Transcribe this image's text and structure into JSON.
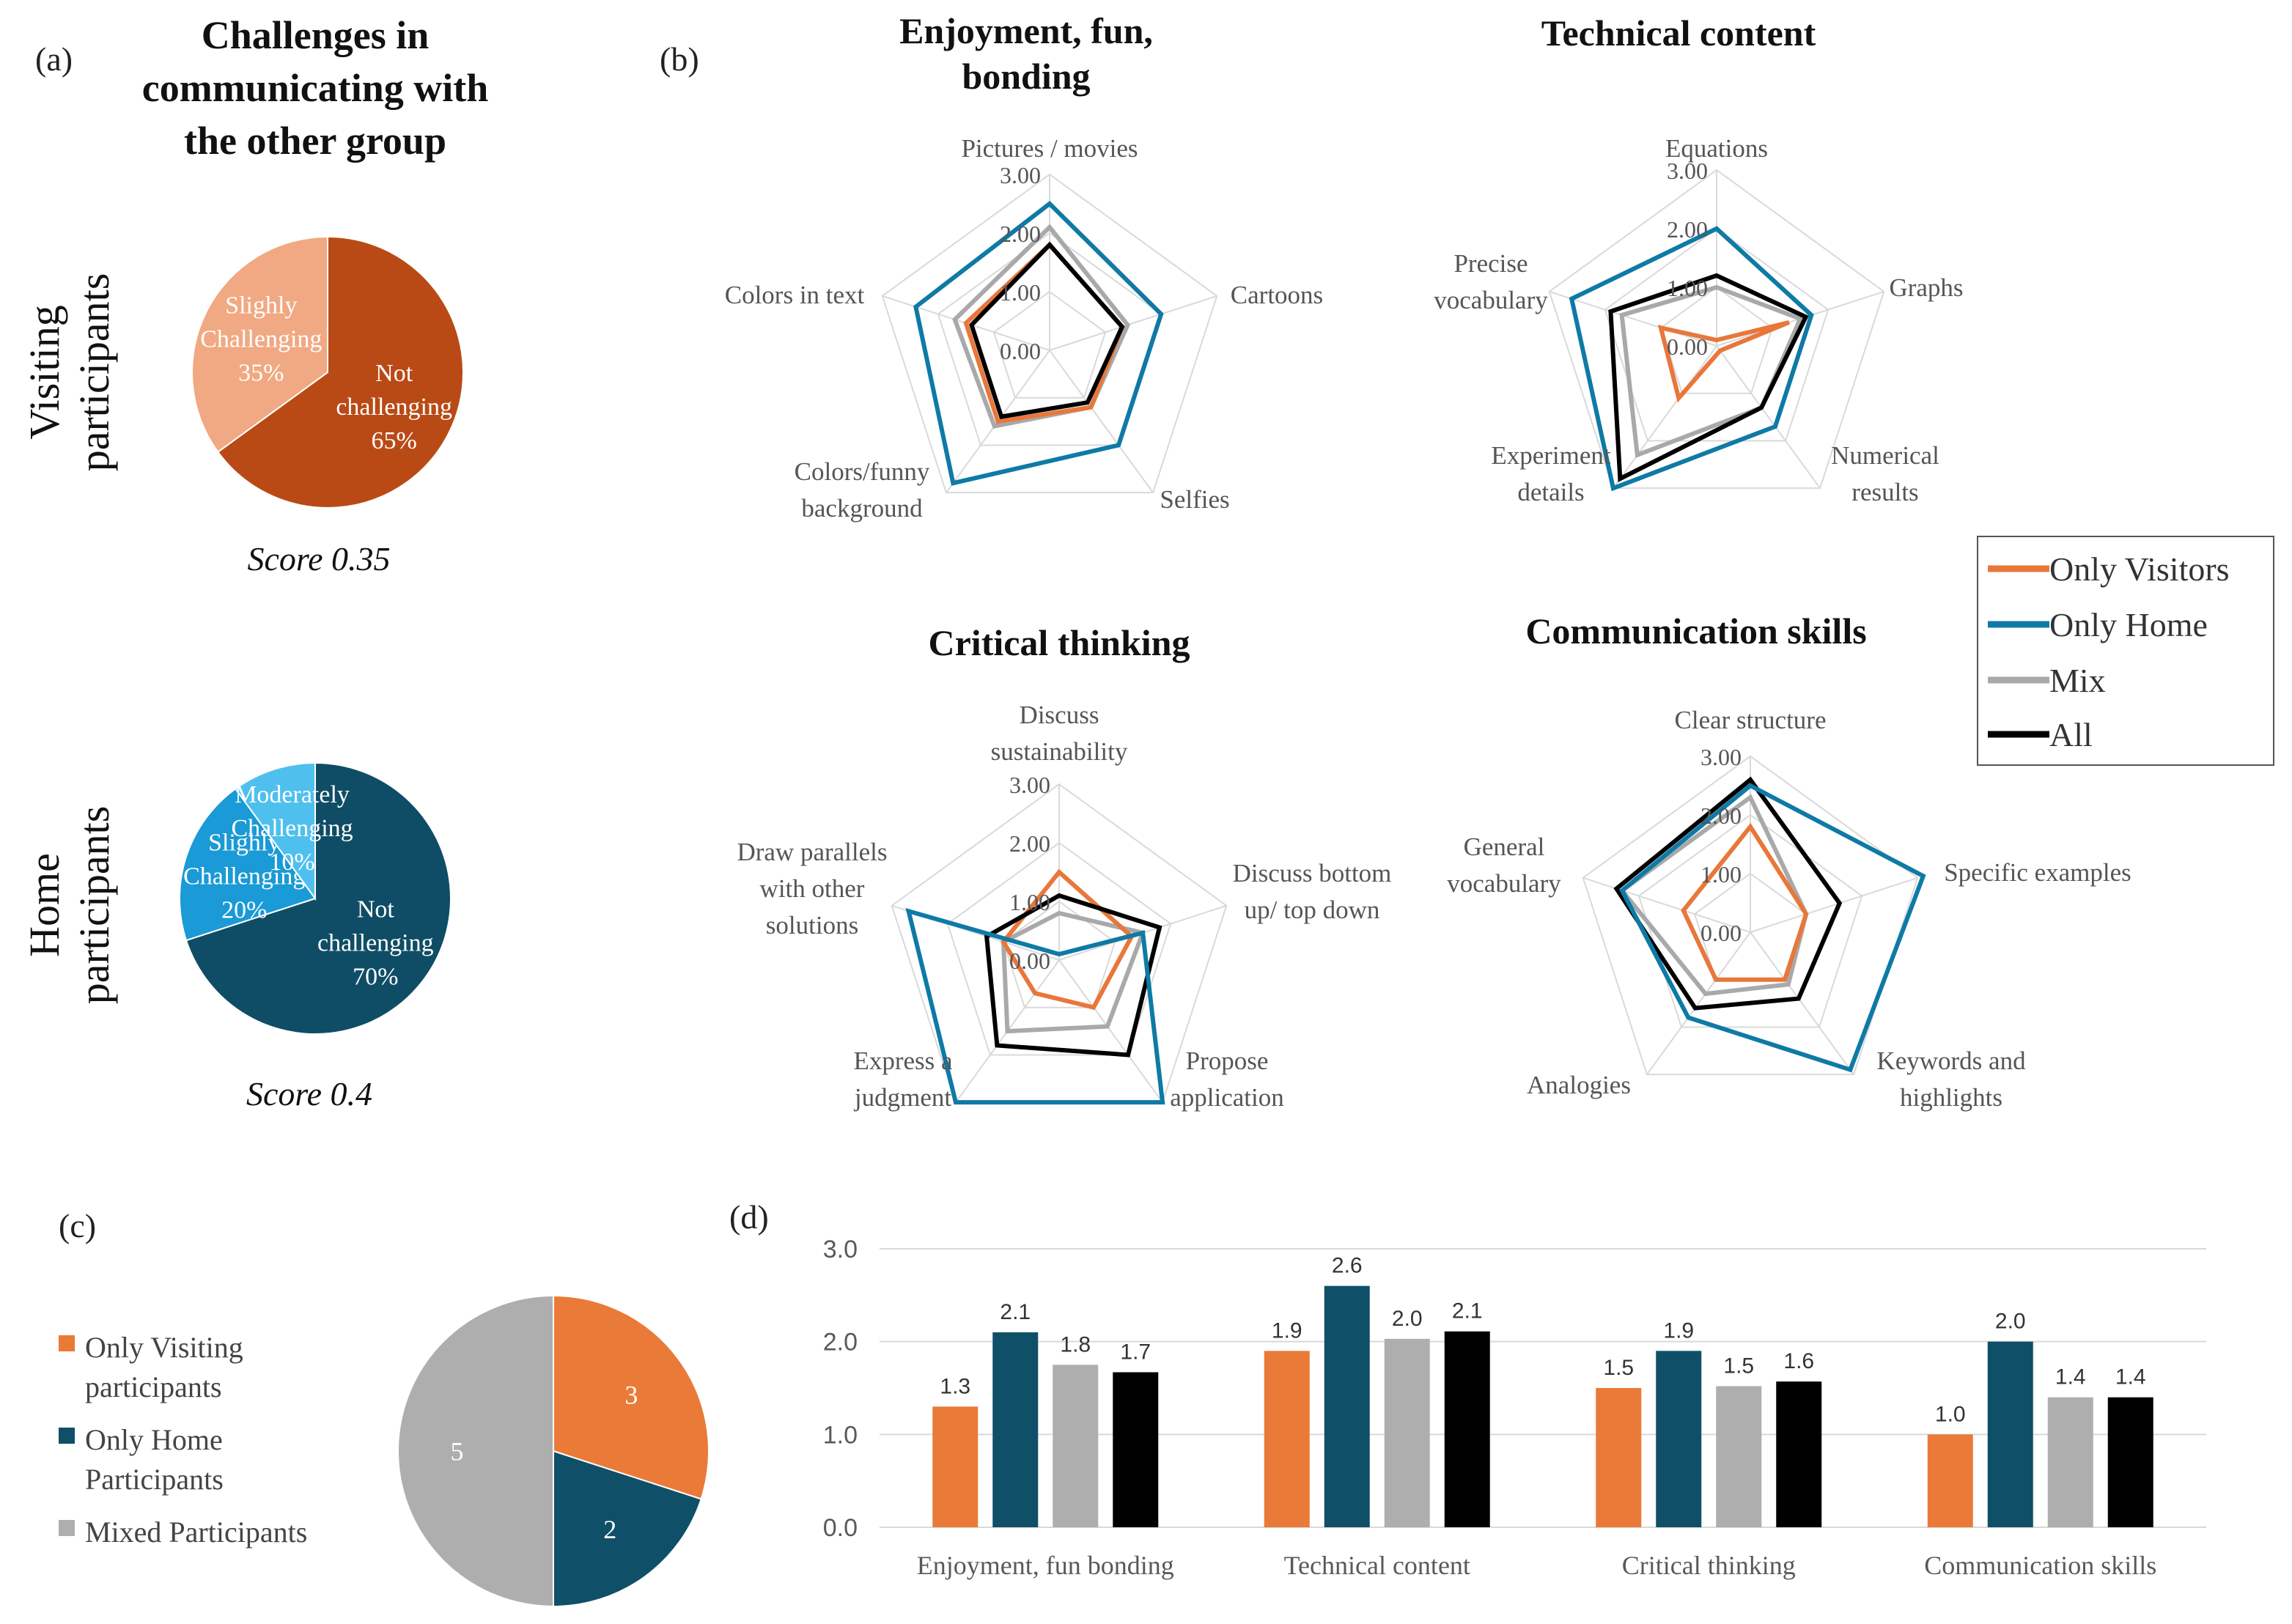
{
  "panel_labels": {
    "a": "(a)",
    "b": "(b)",
    "c": "(c)",
    "d": "(d)"
  },
  "colors": {
    "visiting_dark": "#b94a16",
    "visiting_light": "#f0a982",
    "home_dark": "#0f4d66",
    "home_mid": "#1a9ad6",
    "home_light": "#4fc0ee",
    "only_visitors": "#e8773a",
    "only_home": "#0e7aa5",
    "mix": "#a9a9a9",
    "all": "#000000",
    "bar_visitors": "#ea7a38",
    "bar_home": "#0f4f68",
    "bar_mix": "#aeaeae",
    "bar_all": "#000000",
    "grid": "#d9d9d9",
    "axis_text": "#595959"
  },
  "panel_a": {
    "title_lines": [
      "Challenges in",
      "communicating with",
      "the other group"
    ],
    "visiting_label": [
      "Visiting",
      "participants"
    ],
    "home_label": [
      "Home",
      "participants"
    ],
    "visiting_score": "Score 0.35",
    "home_score": "Score 0.4"
  },
  "legend": {
    "only_visitors": "Only Visitors",
    "only_home": "Only Home",
    "mix": "Mix",
    "all": "All"
  },
  "panel_c": {
    "legend": [
      {
        "lines": [
          "Only Visiting",
          "participants"
        ],
        "color": "#ea7a38"
      },
      {
        "lines": [
          "Only Home",
          "Participants"
        ],
        "color": "#0f4f68"
      },
      {
        "lines": [
          "Mixed Participants"
        ],
        "color": "#aeaeae"
      }
    ]
  },
  "chart_data": [
    {
      "id": "visiting_pie",
      "type": "pie",
      "title": "Visiting participants",
      "slices": [
        {
          "lines": [
            "Not",
            "challenging",
            "65%"
          ],
          "value": 65,
          "color": "#b94a16"
        },
        {
          "lines": [
            "Slighly",
            "Challenging",
            "35%"
          ],
          "value": 35,
          "color": "#f0a982"
        }
      ]
    },
    {
      "id": "home_pie",
      "type": "pie",
      "title": "Home participants",
      "slices": [
        {
          "lines": [
            "Not",
            "challenging",
            "70%"
          ],
          "value": 70,
          "color": "#0f4d66"
        },
        {
          "lines": [
            "Slighly",
            "Challenging",
            "20%"
          ],
          "value": 20,
          "color": "#1a9ad6"
        },
        {
          "lines": [
            "Moderately",
            "Challenging",
            "10%"
          ],
          "value": 10,
          "color": "#4fc0ee"
        }
      ]
    },
    {
      "id": "radar_enjoyment",
      "type": "radar",
      "title_lines": [
        "Enjoyment, fun,",
        "bonding"
      ],
      "axes": [
        {
          "lines": [
            "Pictures / movies"
          ]
        },
        {
          "lines": [
            "Cartoons"
          ]
        },
        {
          "lines": [
            "Selfies"
          ]
        },
        {
          "lines": [
            "Colors/funny",
            "background"
          ]
        },
        {
          "lines": [
            "Colors in text"
          ]
        }
      ],
      "rmax": 3,
      "ticks": [
        "0.00",
        "1.00",
        "2.00",
        "3.00"
      ],
      "series": [
        {
          "name": "Only Visitors",
          "values": [
            1.8,
            1.3,
            1.2,
            1.5,
            1.5
          ]
        },
        {
          "name": "Only Home",
          "values": [
            2.5,
            2.0,
            2.0,
            2.8,
            2.4
          ]
        },
        {
          "name": "Mix",
          "values": [
            2.1,
            1.4,
            1.2,
            1.6,
            1.7
          ]
        },
        {
          "name": "All",
          "values": [
            1.8,
            1.3,
            1.1,
            1.4,
            1.4
          ]
        }
      ]
    },
    {
      "id": "radar_technical",
      "type": "radar",
      "title_lines": [
        "Technical content"
      ],
      "axes": [
        {
          "lines": [
            "Equations"
          ]
        },
        {
          "lines": [
            "Graphs"
          ]
        },
        {
          "lines": [
            "Numerical",
            "results"
          ]
        },
        {
          "lines": [
            "Experiment",
            "details"
          ]
        },
        {
          "lines": [
            "Precise",
            "vocabulary"
          ]
        }
      ],
      "rmax": 3,
      "ticks": [
        "0.00",
        "1.00",
        "2.00",
        "3.00"
      ],
      "series": [
        {
          "name": "Only Visitors",
          "values": [
            0.1,
            1.3,
            0.1,
            1.1,
            1.0
          ]
        },
        {
          "name": "Only Home",
          "values": [
            2.0,
            1.7,
            1.7,
            3.0,
            2.6
          ]
        },
        {
          "name": "Mix",
          "values": [
            1.0,
            1.5,
            1.3,
            2.3,
            1.7
          ]
        },
        {
          "name": "All",
          "values": [
            1.2,
            1.6,
            1.3,
            2.8,
            1.9
          ]
        }
      ]
    },
    {
      "id": "radar_critical",
      "type": "radar",
      "title_lines": [
        "Critical thinking"
      ],
      "axes": [
        {
          "lines": [
            "Discuss",
            "sustainability"
          ]
        },
        {
          "lines": [
            "Discuss bottom",
            "up/ top down"
          ]
        },
        {
          "lines": [
            "Propose",
            "application"
          ]
        },
        {
          "lines": [
            "Express a",
            "judgment"
          ]
        },
        {
          "lines": [
            "Draw parallels",
            "with other",
            "solutions"
          ]
        }
      ],
      "rmax": 3,
      "ticks": [
        "0.00",
        "1.00",
        "2.00",
        "3.00"
      ],
      "series": [
        {
          "name": "Only Visitors",
          "values": [
            1.5,
            1.3,
            1.0,
            0.7,
            1.0
          ]
        },
        {
          "name": "Only Home",
          "values": [
            0.1,
            1.5,
            3.0,
            3.0,
            2.7
          ]
        },
        {
          "name": "Mix",
          "values": [
            0.8,
            1.5,
            1.4,
            1.5,
            1.0
          ]
        },
        {
          "name": "All",
          "values": [
            1.1,
            1.8,
            2.0,
            1.8,
            1.3
          ]
        }
      ]
    },
    {
      "id": "radar_communication",
      "type": "radar",
      "title_lines": [
        "Communication skills"
      ],
      "axes": [
        {
          "lines": [
            "Clear structure"
          ]
        },
        {
          "lines": [
            "Specific examples"
          ]
        },
        {
          "lines": [
            "Keywords and",
            "highlights"
          ]
        },
        {
          "lines": [
            "Analogies"
          ]
        },
        {
          "lines": [
            "General",
            "vocabulary"
          ]
        }
      ],
      "rmax": 3,
      "ticks": [
        "0.00",
        "1.00",
        "2.00",
        "3.00"
      ],
      "series": [
        {
          "name": "Only Visitors",
          "values": [
            1.8,
            1.0,
            1.0,
            1.0,
            1.2
          ]
        },
        {
          "name": "Only Home",
          "values": [
            2.5,
            3.1,
            2.9,
            1.8,
            2.3
          ]
        },
        {
          "name": "Mix",
          "values": [
            2.3,
            1.0,
            1.1,
            1.3,
            2.3
          ]
        },
        {
          "name": "All",
          "values": [
            2.6,
            1.6,
            1.4,
            1.6,
            2.4
          ]
        }
      ]
    },
    {
      "id": "pie_groups",
      "type": "pie",
      "title": "",
      "slices": [
        {
          "lines": [
            "3"
          ],
          "value": 3,
          "color": "#ea7a38"
        },
        {
          "lines": [
            "2"
          ],
          "value": 2,
          "color": "#0f4f68"
        },
        {
          "lines": [
            "5"
          ],
          "value": 5,
          "color": "#aeaeae"
        }
      ]
    },
    {
      "id": "bar_scores",
      "type": "bar",
      "title": "",
      "xlabel": "",
      "ylabel": "",
      "ylim": [
        0,
        3
      ],
      "yticks": [
        "0.0",
        "1.0",
        "2.0",
        "3.0"
      ],
      "categories": [
        "Enjoyment, fun bonding",
        "Technical content",
        "Critical thinking",
        "Communication skills"
      ],
      "series": [
        {
          "name": "Only Visitors",
          "values": [
            1.3,
            1.9,
            1.5,
            1.0
          ],
          "labels": [
            "1.3",
            "1.9",
            "1.5",
            "1.0"
          ],
          "color": "#ea7a38"
        },
        {
          "name": "Only Home",
          "values": [
            2.1,
            2.6,
            1.9,
            2.0
          ],
          "labels": [
            "2.1",
            "2.6",
            "1.9",
            "2.0"
          ],
          "color": "#0f4f68"
        },
        {
          "name": "Mix",
          "values": [
            1.75,
            2.03,
            1.52,
            1.4
          ],
          "labels": [
            "1.8",
            "2.0",
            "1.5",
            "1.4"
          ],
          "color": "#aeaeae"
        },
        {
          "name": "All",
          "values": [
            1.67,
            2.11,
            1.57,
            1.4
          ],
          "labels": [
            "1.7",
            "2.1",
            "1.6",
            "1.4"
          ],
          "color": "#000000"
        }
      ]
    }
  ]
}
